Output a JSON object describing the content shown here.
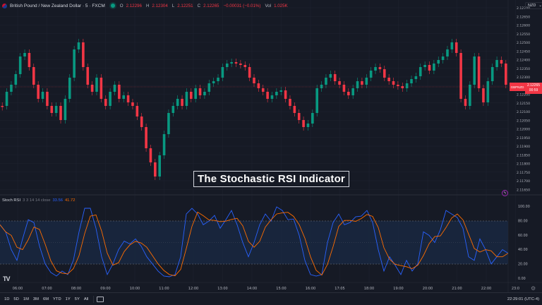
{
  "header": {
    "symbol_title": "British Pound / New Zealand Dollar · 5 · FXCM",
    "market_status_icon": "market-open-dot-icon",
    "ohlc": {
      "open_label": "O",
      "open": "2.12296",
      "high_label": "H",
      "high": "2.12304",
      "low_label": "L",
      "low": "2.12251",
      "close_label": "C",
      "close": "2.12265",
      "change": "−0.00031 (−0.01%)"
    },
    "volume_label": "Vol",
    "volume": "1.025K",
    "currency": "NZD",
    "currency_chevron": "chevron-down-icon"
  },
  "price_axis": {
    "ticks": [
      "2.12700",
      "2.12650",
      "2.12600",
      "2.12550",
      "2.12500",
      "2.12450",
      "2.12400",
      "2.12350",
      "2.12300",
      "2.12250",
      "2.12200",
      "2.12150",
      "2.12100",
      "2.12050",
      "2.12000",
      "2.11950",
      "2.11900",
      "2.11850",
      "2.11800",
      "2.11750",
      "2.11700",
      "2.11650"
    ],
    "current_price": "2.12265",
    "countdown": "00:59",
    "symbol_tag": "GBPNZD",
    "accent_color": "#f23645"
  },
  "overlay": {
    "title": "The Stochastic RSI Indicator"
  },
  "indicator": {
    "name": "Stoch RSI",
    "params": "3 3 14 14 close",
    "k_value": "33.56",
    "d_value": "41.72",
    "k_color": "#2962ff",
    "d_color": "#ff6d00",
    "axis_ticks": [
      "100.00",
      "80.00",
      "60.00",
      "40.00",
      "20.00",
      "0.00"
    ],
    "upper_band": 80,
    "lower_band": 20
  },
  "time_axis": {
    "ticks": [
      "06:00",
      "07:00",
      "08:00",
      "09:00",
      "10:00",
      "11:00",
      "12:00",
      "13:00",
      "14:00",
      "15:00",
      "16:00",
      "17:05",
      "18:00",
      "19:00",
      "20:00",
      "21:00",
      "22:00",
      "23:0"
    ]
  },
  "bottom_bar": {
    "ranges": [
      "1D",
      "5D",
      "1M",
      "3M",
      "6M",
      "YTD",
      "1Y",
      "5Y",
      "All"
    ],
    "compare_icon": "compare-icon",
    "clock": "22:29:01 (UTC-4)"
  },
  "colors": {
    "background": "#161a25",
    "grid": "#1f2330",
    "bull": "#089981",
    "bear": "#f23645"
  }
}
